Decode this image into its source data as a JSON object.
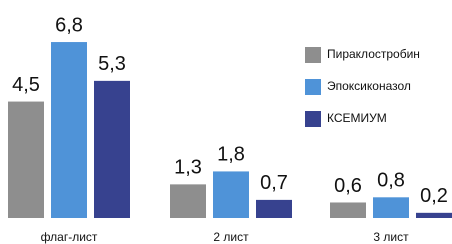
{
  "chart_data": {
    "type": "bar",
    "categories": [
      "флаг-лист",
      "2 лист",
      "3 лист"
    ],
    "series": [
      {
        "name": "Пираклостробин",
        "color": "#8e8e8e",
        "values": [
          4.5,
          1.3,
          0.6
        ],
        "value_labels": [
          "4,5",
          "1,3",
          "0,6"
        ]
      },
      {
        "name": "Эпоксиконазол",
        "color": "#4f93d8",
        "values": [
          6.8,
          1.8,
          0.8
        ],
        "value_labels": [
          "6,8",
          "1,8",
          "0,8"
        ]
      },
      {
        "name": "КСЕМИУМ",
        "color": "#37428f",
        "values": [
          5.3,
          0.7,
          0.2
        ],
        "value_labels": [
          "5,3",
          "0,7",
          "0,2"
        ]
      }
    ],
    "ylim": [
      0,
      8
    ]
  }
}
